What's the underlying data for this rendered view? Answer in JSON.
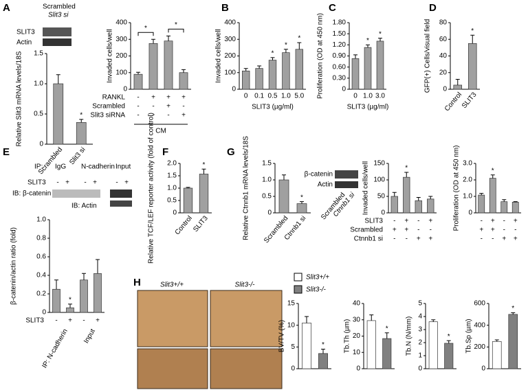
{
  "figure": {
    "panels": [
      "A",
      "B",
      "C",
      "D",
      "E",
      "F",
      "G",
      "H"
    ],
    "a_blot": {
      "labels": [
        "SLIT3",
        "Actin"
      ],
      "lanes": [
        "Scrambled",
        "Slit3 si"
      ]
    },
    "e_blot": {
      "ip": "IP:",
      "ip_groups": [
        "IgG",
        "N-cadherin",
        "Input"
      ],
      "treatment": "SLIT3",
      "signs": [
        "-",
        "+",
        "-",
        "+",
        "-",
        "+"
      ],
      "ib_top": "IB: β-catenin",
      "ib_bottom": "IB: Actin"
    },
    "g_blot": {
      "labels": [
        "β-catenin",
        "Actin"
      ],
      "lanes": [
        "Scrambled",
        "Ctnnb1 si"
      ]
    },
    "h_images": {
      "genotypes": [
        "Slit3+/+",
        "Slit3-/-"
      ]
    },
    "h_legend": [
      {
        "name": "Slit3+/+",
        "color": "#ffffff"
      },
      {
        "name": "Slit3-/-",
        "color": "#808080"
      }
    ]
  },
  "chart_data": [
    {
      "type": "bar",
      "ylabel": "Relative Slit3 mRNA levels/18S",
      "categories": [
        "Scrambled",
        "Slit3 si"
      ],
      "values": [
        1.0,
        0.36
      ],
      "errors": [
        0.15,
        0.05
      ],
      "color": "#a0a0a0",
      "ylim": [
        0,
        1.5
      ],
      "yticks": [
        0,
        0.5,
        {
          "value": 1,
          "label": "1.0"
        },
        1.5
      ],
      "marker": "*",
      "significant": [
        false,
        true
      ]
    },
    {
      "type": "bar",
      "ylabel": "Invaded cells/well",
      "values": [
        90,
        275,
        290,
        100
      ],
      "errors": [
        12,
        25,
        30,
        18
      ],
      "color": "#a0a0a0",
      "ylim": [
        0,
        400
      ],
      "yticks": [
        0,
        100,
        200,
        300,
        400
      ],
      "marker": "*",
      "brackets": [
        [
          0,
          1
        ],
        [
          2,
          3
        ]
      ],
      "row_labels": [
        "RANKL",
        "Scrambled",
        "Slit3 siRNA"
      ],
      "rows": [
        [
          "-",
          "+",
          "+",
          "+"
        ],
        [
          "-",
          "-",
          "+",
          "-"
        ],
        [
          "-",
          "-",
          "-",
          "+"
        ]
      ],
      "group_label": "CM"
    },
    {
      "type": "bar",
      "ylabel": "Invaded cells/well",
      "xlabel": "SLIT3 (µg/ml)",
      "categories": [
        "0",
        "0.1",
        "0.5",
        "1.0",
        "5.0"
      ],
      "values": [
        110,
        125,
        175,
        220,
        240
      ],
      "errors": [
        15,
        15,
        15,
        20,
        40
      ],
      "color": "#a0a0a0",
      "ylim": [
        0,
        400
      ],
      "yticks": [
        0,
        100,
        200,
        300,
        400
      ],
      "marker": "*",
      "significant": [
        false,
        false,
        true,
        true,
        true
      ]
    },
    {
      "type": "bar",
      "ylabel": "Proliferation (OD at 450 nm)",
      "xlabel": "SLIT3 (µg/ml)",
      "categories": [
        "0",
        "1.0",
        "3.0"
      ],
      "values": [
        0.83,
        1.13,
        1.3
      ],
      "errors": [
        0.1,
        0.07,
        0.08
      ],
      "color": "#a0a0a0",
      "ylim": [
        0,
        1.8
      ],
      "yticks": [
        0,
        {
          "value": 0.3,
          "label": "0.30"
        },
        {
          "value": 0.6,
          "label": "0.60"
        },
        {
          "value": 0.9,
          "label": "0.90"
        },
        {
          "value": 1.2,
          "label": "1.20"
        },
        {
          "value": 1.5,
          "label": "1.50"
        },
        {
          "value": 1.8,
          "label": "1.80"
        }
      ],
      "marker": "*",
      "significant": [
        false,
        true,
        true
      ]
    },
    {
      "type": "bar",
      "ylabel": "GFP(+) Cells/visual field",
      "categories": [
        "Control",
        "SLIT3"
      ],
      "values": [
        5,
        55
      ],
      "errors": [
        7,
        10
      ],
      "color": "#a0a0a0",
      "ylim": [
        0,
        80
      ],
      "yticks": [
        0,
        20,
        40,
        60,
        80
      ],
      "marker": "*",
      "significant": [
        false,
        true
      ]
    },
    {
      "type": "bar",
      "ylabel": "β-catenin/actin ratio (fold)",
      "values": [
        0.25,
        0.05,
        0.35,
        0.42
      ],
      "errors": [
        0.1,
        0.04,
        0.07,
        0.15
      ],
      "color": "#a0a0a0",
      "ylim": [
        0,
        1.0
      ],
      "yticks": [
        0,
        0.2,
        0.4,
        0.6,
        0.8,
        {
          "value": 1,
          "label": "1.0"
        }
      ],
      "marker": "*",
      "significant": [
        false,
        true,
        false,
        false
      ],
      "row_labels": [
        "SLIT3"
      ],
      "rows": [
        [
          "-",
          "+",
          "-",
          "+"
        ]
      ],
      "groups": [
        "IP: N-cadherin",
        "Input"
      ]
    },
    {
      "type": "bar",
      "ylabel": "Relative TCF/LEF reporter activity (fold of control)",
      "categories": [
        "Control",
        "SLIT3"
      ],
      "values": [
        1.0,
        1.57
      ],
      "errors": [
        0.03,
        0.2
      ],
      "color": "#a0a0a0",
      "ylim": [
        0,
        2.0
      ],
      "yticks": [
        0,
        0.5,
        {
          "value": 1,
          "label": "1.0"
        },
        1.5,
        {
          "value": 2,
          "label": "2.0"
        }
      ],
      "marker": "*",
      "significant": [
        false,
        true
      ]
    },
    {
      "type": "bar",
      "ylabel": "Relative Ctnnb1 mRNA levels/18S",
      "categories": [
        "Scrambled",
        "Ctnnb1 si"
      ],
      "values": [
        1.0,
        0.28
      ],
      "errors": [
        0.15,
        0.06
      ],
      "color": "#a0a0a0",
      "ylim": [
        0,
        1.5
      ],
      "yticks": [
        0,
        0.5,
        {
          "value": 1,
          "label": "1.0"
        },
        1.5
      ],
      "marker": "*",
      "significant": [
        false,
        true
      ]
    },
    {
      "type": "bar",
      "ylabel": "Invaded cells/well",
      "values": [
        50,
        108,
        37,
        42
      ],
      "errors": [
        12,
        15,
        10,
        8
      ],
      "color": "#a0a0a0",
      "ylim": [
        0,
        150
      ],
      "yticks": [
        0,
        50,
        100,
        150
      ],
      "marker": "*",
      "significant": [
        false,
        true,
        false,
        false
      ],
      "row_labels": [
        "SLIT3",
        "Scrambled",
        "Ctnnb1 si"
      ],
      "rows": [
        [
          "-",
          "+",
          "-",
          "+"
        ],
        [
          "+",
          "+",
          "-",
          "-"
        ],
        [
          "-",
          "-",
          "+",
          "+"
        ]
      ]
    },
    {
      "type": "bar",
      "ylabel": "Proliferation (OD at 450 nm)",
      "values": [
        1.08,
        2.1,
        0.68,
        0.65
      ],
      "errors": [
        0.1,
        0.2,
        0.12,
        0.03
      ],
      "color": "#a0a0a0",
      "ylim": [
        0,
        3.0
      ],
      "yticks": [
        0,
        {
          "value": 1,
          "label": "1.0"
        },
        {
          "value": 2,
          "label": "2.0"
        },
        {
          "value": 3,
          "label": "3.0"
        }
      ],
      "marker": "*",
      "significant": [
        false,
        true,
        false,
        false
      ],
      "rows": [
        [
          "-",
          "+",
          "-",
          "+"
        ],
        [
          "+",
          "+",
          "-",
          "-"
        ],
        [
          "-",
          "-",
          "+",
          "+"
        ]
      ]
    },
    {
      "type": "bar",
      "ylabel": "BV/TV (%)",
      "values": [
        10.5,
        3.5
      ],
      "errors": [
        1.5,
        1.0
      ],
      "colors": [
        "#ffffff",
        "#808080"
      ],
      "ylim": [
        0,
        15
      ],
      "yticks": [
        0,
        5,
        10,
        15
      ],
      "marker": "*",
      "significant": [
        false,
        true
      ]
    },
    {
      "type": "bar",
      "ylabel": "Tb.Th (µm)",
      "values": [
        29.5,
        18.5
      ],
      "errors": [
        3.5,
        3.5
      ],
      "colors": [
        "#ffffff",
        "#808080"
      ],
      "ylim": [
        0,
        40
      ],
      "yticks": [
        0,
        10,
        20,
        30,
        40
      ],
      "marker": "*",
      "significant": [
        false,
        true
      ]
    },
    {
      "type": "bar",
      "ylabel": "Tb.N (N/mm)",
      "values": [
        3.6,
        1.95
      ],
      "errors": [
        0.15,
        0.2
      ],
      "colors": [
        "#ffffff",
        "#808080"
      ],
      "ylim": [
        0,
        5
      ],
      "yticks": [
        0,
        1,
        2,
        3,
        4,
        5
      ],
      "marker": "*",
      "significant": [
        false,
        true
      ]
    },
    {
      "type": "bar",
      "ylabel": "Tb.Sp (µm)",
      "values": [
        250,
        500
      ],
      "errors": [
        15,
        15
      ],
      "colors": [
        "#ffffff",
        "#808080"
      ],
      "ylim": [
        0,
        600
      ],
      "yticks": [
        0,
        200,
        400,
        600
      ],
      "marker": "*",
      "significant": [
        false,
        true
      ]
    }
  ]
}
